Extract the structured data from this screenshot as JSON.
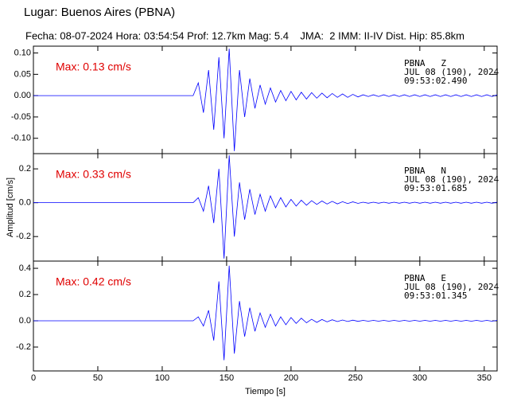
{
  "header": {
    "title": "Lugar: Buenos Aires (PBNA)",
    "subtitle": "Fecha: 08-07-2024 Hora: 03:54:54 Prof: 12.7km Mag: 5.4    JMA:  2 IMM: II-IV Dist. Hip: 85.8km"
  },
  "chart_data": [
    {
      "type": "line",
      "color": "#0000ff",
      "max_label": "Max: 0.13 cm/s",
      "station": [
        "PBNA   Z",
        "JUL 08 (190), 2024",
        "09:53:02.490"
      ],
      "xlim": [
        0,
        360
      ],
      "xticks": [
        0,
        50,
        100,
        150,
        200,
        250,
        300,
        350
      ],
      "ylim": [
        -0.136,
        0.116
      ],
      "yticks": [
        {
          "value": 0.1,
          "label": "0.10"
        },
        {
          "value": 0.05,
          "label": "0.05"
        },
        {
          "value": 0,
          "label": "0.00"
        },
        {
          "value": -0.05,
          "label": "-0.05"
        },
        {
          "value": -0.1,
          "label": "-0.10"
        }
      ],
      "x": [
        0,
        4,
        8,
        12,
        16,
        20,
        24,
        28,
        32,
        36,
        40,
        44,
        48,
        52,
        56,
        60,
        64,
        68,
        72,
        76,
        80,
        84,
        88,
        92,
        96,
        100,
        104,
        108,
        112,
        116,
        120,
        124,
        128,
        132,
        136,
        140,
        144,
        148,
        152,
        156,
        160,
        164,
        168,
        172,
        176,
        180,
        184,
        188,
        192,
        196,
        200,
        204,
        208,
        212,
        216,
        220,
        224,
        228,
        232,
        236,
        240,
        244,
        248,
        252,
        256,
        260,
        264,
        268,
        272,
        276,
        280,
        284,
        288,
        292,
        296,
        300,
        304,
        308,
        312,
        316,
        320,
        324,
        328,
        332,
        336,
        340,
        344,
        348,
        352,
        356,
        360
      ],
      "values": [
        0,
        0,
        0,
        0,
        0,
        0,
        0,
        0,
        0,
        0,
        0,
        0,
        0,
        0,
        0,
        0,
        0,
        0,
        0,
        0,
        0,
        0,
        0,
        0,
        0,
        0,
        0,
        0,
        0,
        0,
        0,
        0,
        0.03,
        -0.04,
        0.06,
        -0.08,
        0.09,
        -0.1,
        0.11,
        -0.13,
        0.06,
        -0.05,
        0.04,
        -0.03,
        0.025,
        -0.02,
        0.018,
        -0.015,
        0.012,
        -0.012,
        0.01,
        -0.01,
        0.008,
        -0.008,
        0.007,
        -0.006,
        0.006,
        -0.005,
        0.005,
        -0.004,
        0.004,
        -0.004,
        0.003,
        -0.003,
        0.002,
        -0.002,
        0.002,
        -0.002,
        0.002,
        -0.002,
        0.002,
        -0.002,
        0.002,
        -0.002,
        0.002,
        -0.002,
        0.002,
        -0.002,
        0.002,
        -0.002,
        0.002,
        -0.002,
        0.002,
        -0.002,
        0.002,
        -0.002,
        0.002,
        -0.002,
        0.002,
        -0.002,
        0.002
      ]
    },
    {
      "type": "line",
      "color": "#0000ff",
      "max_label": "Max: 0.33 cm/s",
      "station": [
        "PBNA   N",
        "JUL 08 (190), 2024",
        "09:53:01.685"
      ],
      "ylabel": "Amplitud [cm/s]",
      "xlim": [
        0,
        360
      ],
      "xticks": [
        0,
        50,
        100,
        150,
        200,
        250,
        300,
        350
      ],
      "ylim": [
        -0.345,
        0.29
      ],
      "yticks": [
        {
          "value": 0.2,
          "label": "0.2"
        },
        {
          "value": 0,
          "label": "0.0"
        },
        {
          "value": -0.2,
          "label": "-0.2"
        }
      ],
      "x": [
        0,
        4,
        8,
        12,
        16,
        20,
        24,
        28,
        32,
        36,
        40,
        44,
        48,
        52,
        56,
        60,
        64,
        68,
        72,
        76,
        80,
        84,
        88,
        92,
        96,
        100,
        104,
        108,
        112,
        116,
        120,
        124,
        128,
        132,
        136,
        140,
        144,
        148,
        152,
        156,
        160,
        164,
        168,
        172,
        176,
        180,
        184,
        188,
        192,
        196,
        200,
        204,
        208,
        212,
        216,
        220,
        224,
        228,
        232,
        236,
        240,
        244,
        248,
        252,
        256,
        260,
        264,
        268,
        272,
        276,
        280,
        284,
        288,
        292,
        296,
        300,
        304,
        308,
        312,
        316,
        320,
        324,
        328,
        332,
        336,
        340,
        344,
        348,
        352,
        356,
        360
      ],
      "values": [
        0,
        0,
        0,
        0,
        0,
        0,
        0,
        0,
        0,
        0,
        0,
        0,
        0,
        0,
        0,
        0,
        0,
        0,
        0,
        0,
        0,
        0,
        0,
        0,
        0,
        0,
        0,
        0,
        0,
        0,
        0,
        0,
        0.03,
        -0.05,
        0.1,
        -0.12,
        0.2,
        -0.33,
        0.28,
        -0.2,
        0.12,
        -0.1,
        0.08,
        -0.07,
        0.05,
        -0.05,
        0.04,
        -0.03,
        0.03,
        -0.025,
        0.02,
        -0.02,
        0.015,
        -0.015,
        0.012,
        -0.01,
        0.01,
        -0.008,
        0.008,
        -0.007,
        0.006,
        -0.005,
        0.005,
        -0.004,
        0.003,
        -0.003,
        0.003,
        -0.003,
        0.003,
        -0.003,
        0.003,
        -0.003,
        0.003,
        -0.003,
        0.003,
        -0.003,
        0.003,
        -0.003,
        0.003,
        -0.003,
        0.003,
        -0.003,
        0.003,
        -0.003,
        0.003,
        -0.003,
        0.003,
        -0.003,
        0.003,
        -0.003,
        0.003
      ]
    },
    {
      "type": "line",
      "color": "#0000ff",
      "max_label": "Max: 0.42 cm/s",
      "station": [
        "PBNA   E",
        "JUL 08 (190), 2024",
        "09:53:01.345"
      ],
      "xlabel": "Tiempo [s]",
      "xlim": [
        0,
        360
      ],
      "xticks": [
        0,
        50,
        100,
        150,
        200,
        250,
        300,
        350
      ],
      "ylim": [
        -0.382,
        0.455
      ],
      "yticks": [
        {
          "value": 0.4,
          "label": "0.4"
        },
        {
          "value": 0.2,
          "label": "0.2"
        },
        {
          "value": 0,
          "label": "0.0"
        },
        {
          "value": -0.2,
          "label": "-0.2"
        }
      ],
      "x": [
        0,
        4,
        8,
        12,
        16,
        20,
        24,
        28,
        32,
        36,
        40,
        44,
        48,
        52,
        56,
        60,
        64,
        68,
        72,
        76,
        80,
        84,
        88,
        92,
        96,
        100,
        104,
        108,
        112,
        116,
        120,
        124,
        128,
        132,
        136,
        140,
        144,
        148,
        152,
        156,
        160,
        164,
        168,
        172,
        176,
        180,
        184,
        188,
        192,
        196,
        200,
        204,
        208,
        212,
        216,
        220,
        224,
        228,
        232,
        236,
        240,
        244,
        248,
        252,
        256,
        260,
        264,
        268,
        272,
        276,
        280,
        284,
        288,
        292,
        296,
        300,
        304,
        308,
        312,
        316,
        320,
        324,
        328,
        332,
        336,
        340,
        344,
        348,
        352,
        356,
        360
      ],
      "values": [
        0,
        0,
        0,
        0,
        0,
        0,
        0,
        0,
        0,
        0,
        0,
        0,
        0,
        0,
        0,
        0,
        0,
        0,
        0,
        0,
        0,
        0,
        0,
        0,
        0,
        0,
        0,
        0,
        0,
        0,
        0,
        0,
        0.03,
        -0.04,
        0.08,
        -0.15,
        0.3,
        -0.3,
        0.42,
        -0.25,
        0.15,
        -0.12,
        0.1,
        -0.08,
        0.06,
        -0.05,
        0.05,
        -0.04,
        0.03,
        -0.03,
        0.025,
        -0.02,
        0.02,
        -0.015,
        0.012,
        -0.012,
        0.01,
        -0.008,
        0.008,
        -0.006,
        0.006,
        -0.005,
        0.005,
        -0.004,
        0.003,
        -0.003,
        0.003,
        -0.003,
        0.003,
        -0.003,
        0.003,
        -0.003,
        0.003,
        -0.003,
        0.003,
        -0.003,
        0.003,
        -0.003,
        0.003,
        -0.003,
        0.003,
        -0.003,
        0.003,
        -0.003,
        0.003,
        -0.003,
        0.003,
        -0.003,
        0.003,
        -0.003,
        0.003
      ]
    }
  ]
}
